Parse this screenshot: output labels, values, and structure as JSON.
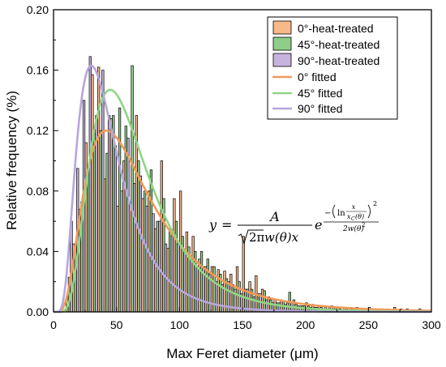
{
  "chart_data": {
    "type": "bar",
    "title": "",
    "xlabel": "Max Feret diameter (μm)",
    "ylabel": "Relative frequency (%)",
    "xlim": [
      0,
      300
    ],
    "ylim": [
      0,
      0.2
    ],
    "x_ticks": [
      0,
      50,
      100,
      150,
      200,
      250,
      300
    ],
    "y_ticks": [
      0.0,
      0.04,
      0.08,
      0.12,
      0.16,
      0.2
    ],
    "x_tick_labels": [
      "0",
      "50",
      "100",
      "150",
      "200",
      "250",
      "300"
    ],
    "y_tick_labels": [
      "0.00",
      "0.04",
      "0.08",
      "0.12",
      "0.16",
      "0.20"
    ],
    "grid": false,
    "legend_position": "top-right",
    "bin_width": 5,
    "bin_starts": [
      10,
      15,
      20,
      25,
      30,
      35,
      40,
      45,
      50,
      55,
      60,
      65,
      70,
      75,
      80,
      85,
      90,
      95,
      100,
      105,
      110,
      115,
      120,
      125,
      130,
      135,
      140,
      145,
      150,
      155,
      160,
      165,
      170,
      175,
      180,
      185,
      190,
      195,
      200,
      205,
      210,
      215,
      220,
      225,
      230,
      235,
      240,
      245,
      250,
      255,
      260,
      265,
      270,
      275,
      280,
      285,
      290,
      295
    ],
    "series": [
      {
        "name": "0°-heat-treated",
        "kind": "histogram",
        "color": "#f7b98a",
        "values": [
          0.01,
          0.045,
          0.068,
          0.112,
          0.157,
          0.162,
          0.088,
          0.128,
          0.07,
          0.1,
          0.072,
          0.13,
          0.075,
          0.08,
          0.055,
          0.1,
          0.042,
          0.075,
          0.08,
          0.053,
          0.05,
          0.035,
          0.03,
          0.03,
          0.028,
          0.027,
          0.025,
          0.03,
          0.05,
          0.02,
          0.024,
          0.015,
          0.01,
          0.008,
          0.008,
          0.006,
          0.008,
          0.004,
          0.006,
          0.005,
          0.004,
          0.003,
          0.004,
          0.003,
          0.003,
          0.003,
          0.003,
          0.002,
          0.003,
          0.002,
          0.002,
          0.002,
          0.003,
          0.002,
          0.002,
          0.001,
          0.002,
          0.001
        ]
      },
      {
        "name": "45°-heat-treated",
        "kind": "histogram",
        "color": "#8fce8a",
        "values": [
          0.023,
          0.045,
          0.073,
          0.095,
          0.118,
          0.12,
          0.105,
          0.13,
          0.135,
          0.123,
          0.163,
          0.1,
          0.08,
          0.094,
          0.06,
          0.075,
          0.055,
          0.06,
          0.05,
          0.043,
          0.04,
          0.04,
          0.035,
          0.03,
          0.025,
          0.022,
          0.018,
          0.02,
          0.015,
          0.015,
          0.012,
          0.014,
          0.008,
          0.006,
          0.007,
          0.013,
          0.005,
          0.004,
          0.004,
          0.003,
          0.003,
          0.002,
          0.003,
          0.002,
          0.002,
          0.002,
          0.001,
          0.002,
          0.001,
          0.001,
          0.001,
          0.001,
          0.001,
          0.001,
          0.0,
          0.001,
          0.0,
          0.001
        ]
      },
      {
        "name": "90°-heat-treated",
        "kind": "histogram",
        "color": "#c7b3dd",
        "values": [
          0.06,
          0.095,
          0.14,
          0.169,
          0.13,
          0.16,
          0.13,
          0.11,
          0.08,
          0.115,
          0.085,
          0.09,
          0.07,
          0.065,
          0.06,
          0.045,
          0.05,
          0.045,
          0.04,
          0.035,
          0.03,
          0.03,
          0.025,
          0.02,
          0.018,
          0.02,
          0.015,
          0.012,
          0.015,
          0.01,
          0.012,
          0.008,
          0.006,
          0.006,
          0.005,
          0.006,
          0.004,
          0.004,
          0.003,
          0.003,
          0.002,
          0.003,
          0.002,
          0.001,
          0.001,
          0.001,
          0.001,
          0.001,
          0.001,
          0.0,
          0.001,
          0.0,
          0.001,
          0.0,
          0.0,
          0.0,
          0.0,
          0.0
        ]
      },
      {
        "name": "0° fitted",
        "kind": "curve",
        "color": "#f29a58",
        "peak_x": 42,
        "peak_y": 0.12,
        "log_width": 0.62
      },
      {
        "name": "45° fitted",
        "kind": "curve",
        "color": "#8ed684",
        "peak_x": 45,
        "peak_y": 0.147,
        "log_width": 0.52
      },
      {
        "name": "90° fitted",
        "kind": "curve",
        "color": "#b6a6dd",
        "peak_x": 30,
        "peak_y": 0.163,
        "log_width": 0.55
      }
    ],
    "annotation": {
      "lhs": "y",
      "equals": "=",
      "numerator": "A",
      "sqrt_content": "2π",
      "denominator_rest": "w(θ)x",
      "base": "e",
      "exp_minus": "−",
      "exp_ln": "ln",
      "exp_frac_num": "x",
      "exp_frac_den": "x",
      "exp_frac_den_sub": "C",
      "exp_frac_den_arg": "(θ)",
      "exp_power": "2",
      "exp_den": "2w(θ)",
      "exp_den_power": "2"
    }
  }
}
